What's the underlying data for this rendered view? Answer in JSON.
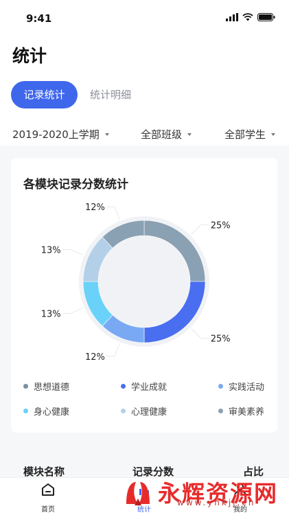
{
  "status": {
    "time": "9:41"
  },
  "header": {
    "title": "统计",
    "tabs": [
      {
        "label": "记录统计",
        "active": true
      },
      {
        "label": "统计明细",
        "active": false
      }
    ],
    "filters": [
      {
        "label": "2019-2020上学期"
      },
      {
        "label": "全部班级"
      },
      {
        "label": "全部学生"
      }
    ]
  },
  "card": {
    "title": "各模块记录分数统计"
  },
  "chart_data": {
    "type": "pie",
    "donut": true,
    "categories": [
      "思想道德",
      "学业成就",
      "实践活动",
      "身心健康",
      "心理健康",
      "审美素养"
    ],
    "slices": [
      {
        "name": "审美素养",
        "value": 25,
        "label": "25%",
        "color": "#8aa1b3"
      },
      {
        "name": "学业成就",
        "value": 25,
        "label": "25%",
        "color": "#4a6ef0"
      },
      {
        "name": "实践活动",
        "value": 12,
        "label": "12%",
        "color": "#7aa9f4"
      },
      {
        "name": "身心健康",
        "value": 13,
        "label": "13%",
        "color": "#6ad2f8"
      },
      {
        "name": "心理健康",
        "value": 13,
        "label": "13%",
        "color": "#b4d0e8"
      },
      {
        "name": "思想道德",
        "value": 12,
        "label": "12%",
        "color": "#8aa1b3"
      }
    ]
  },
  "legend": [
    {
      "label": "思想道德",
      "color": "#7c8fa0"
    },
    {
      "label": "学业成就",
      "color": "#4a6ef0"
    },
    {
      "label": "实践活动",
      "color": "#7aa9f4"
    },
    {
      "label": "身心健康",
      "color": "#6ad2f8"
    },
    {
      "label": "心理健康",
      "color": "#b4d0e8"
    },
    {
      "label": "审美素养",
      "color": "#8aa1b3"
    }
  ],
  "table": {
    "col_module": "模块名称",
    "col_score": "记录分数",
    "col_ratio": "占比"
  },
  "tabbar": {
    "home": "首页",
    "stats": "统计",
    "mine": "我的"
  },
  "watermark": {
    "text": "永辉资源网",
    "url": "www.yhkjj.cn"
  }
}
